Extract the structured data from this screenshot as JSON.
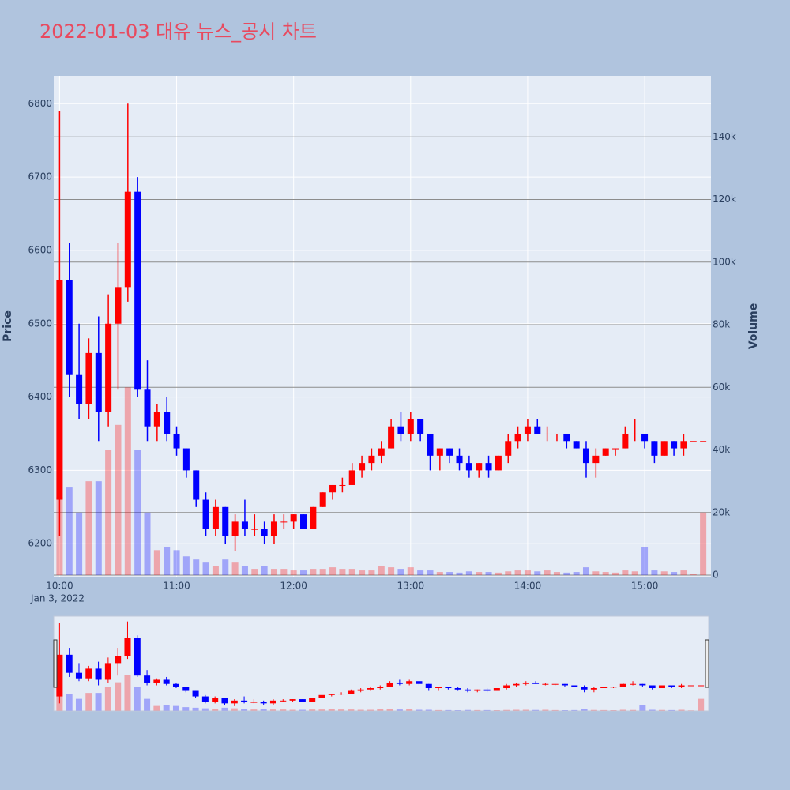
{
  "chart_data": {
    "type": "candlestick",
    "title": "2022-01-03 대유 뉴스_공시 차트",
    "y_label": "Price",
    "y2_label": "Volume",
    "x_date_label": "Jan 3, 2022",
    "x": [
      "2022-01-03 10:00",
      "2022-01-03 10:05",
      "2022-01-03 10:10",
      "2022-01-03 10:15",
      "2022-01-03 10:20",
      "2022-01-03 10:25",
      "2022-01-03 10:30",
      "2022-01-03 10:35",
      "2022-01-03 10:40",
      "2022-01-03 10:45",
      "2022-01-03 10:50",
      "2022-01-03 10:55",
      "2022-01-03 11:00",
      "2022-01-03 11:05",
      "2022-01-03 11:10",
      "2022-01-03 11:15",
      "2022-01-03 11:20",
      "2022-01-03 11:25",
      "2022-01-03 11:30",
      "2022-01-03 11:35",
      "2022-01-03 11:40",
      "2022-01-03 11:45",
      "2022-01-03 11:50",
      "2022-01-03 11:55",
      "2022-01-03 12:00",
      "2022-01-03 12:05",
      "2022-01-03 12:10",
      "2022-01-03 12:15",
      "2022-01-03 12:20",
      "2022-01-03 12:25",
      "2022-01-03 12:30",
      "2022-01-03 12:35",
      "2022-01-03 12:40",
      "2022-01-03 12:45",
      "2022-01-03 12:50",
      "2022-01-03 12:55",
      "2022-01-03 13:00",
      "2022-01-03 13:05",
      "2022-01-03 13:10",
      "2022-01-03 13:15",
      "2022-01-03 13:20",
      "2022-01-03 13:25",
      "2022-01-03 13:30",
      "2022-01-03 13:35",
      "2022-01-03 13:40",
      "2022-01-03 13:45",
      "2022-01-03 13:50",
      "2022-01-03 13:55",
      "2022-01-03 14:00",
      "2022-01-03 14:05",
      "2022-01-03 14:10",
      "2022-01-03 14:15",
      "2022-01-03 14:20",
      "2022-01-03 14:25",
      "2022-01-03 14:30",
      "2022-01-03 14:35",
      "2022-01-03 14:40",
      "2022-01-03 14:45",
      "2022-01-03 14:50",
      "2022-01-03 14:55",
      "2022-01-03 15:00",
      "2022-01-03 15:05",
      "2022-01-03 15:10",
      "2022-01-03 15:15",
      "2022-01-03 15:20",
      "2022-01-03 15:25",
      "2022-01-03 15:30"
    ],
    "open": [
      6260,
      6560,
      6430,
      6390,
      6460,
      6380,
      6500,
      6550,
      6680,
      6410,
      6360,
      6380,
      6350,
      6330,
      6300,
      6260,
      6220,
      6250,
      6210,
      6230,
      6220,
      6220,
      6210,
      6230,
      6230,
      6240,
      6220,
      6250,
      6270,
      6280,
      6280,
      6300,
      6310,
      6320,
      6330,
      6360,
      6350,
      6370,
      6350,
      6320,
      6330,
      6320,
      6310,
      6300,
      6310,
      6300,
      6320,
      6340,
      6350,
      6360,
      6350,
      6350,
      6350,
      6340,
      6330,
      6310,
      6320,
      6330,
      6330,
      6350,
      6350,
      6340,
      6320,
      6340,
      6330,
      6340,
      6340
    ],
    "high": [
      6790,
      6610,
      6500,
      6480,
      6510,
      6540,
      6610,
      6800,
      6700,
      6450,
      6390,
      6400,
      6360,
      6330,
      6300,
      6270,
      6260,
      6250,
      6240,
      6260,
      6240,
      6230,
      6240,
      6240,
      6240,
      6240,
      6250,
      6270,
      6280,
      6290,
      6310,
      6320,
      6330,
      6340,
      6370,
      6380,
      6380,
      6370,
      6350,
      6330,
      6330,
      6330,
      6320,
      6310,
      6320,
      6320,
      6350,
      6360,
      6370,
      6370,
      6360,
      6350,
      6350,
      6340,
      6340,
      6330,
      6330,
      6330,
      6360,
      6370,
      6350,
      6340,
      6340,
      6340,
      6350,
      6340,
      6340
    ],
    "low": [
      6210,
      6400,
      6370,
      6370,
      6340,
      6360,
      6410,
      6530,
      6400,
      6340,
      6340,
      6340,
      6320,
      6290,
      6250,
      6210,
      6210,
      6200,
      6190,
      6210,
      6210,
      6200,
      6200,
      6220,
      6220,
      6220,
      6220,
      6250,
      6260,
      6270,
      6280,
      6290,
      6300,
      6310,
      6330,
      6340,
      6340,
      6340,
      6300,
      6300,
      6310,
      6300,
      6290,
      6290,
      6290,
      6300,
      6310,
      6330,
      6340,
      6350,
      6340,
      6340,
      6330,
      6330,
      6290,
      6290,
      6320,
      6320,
      6330,
      6340,
      6330,
      6310,
      6320,
      6320,
      6320,
      6340,
      6340
    ],
    "close": [
      6560,
      6430,
      6390,
      6460,
      6380,
      6500,
      6550,
      6680,
      6410,
      6360,
      6380,
      6350,
      6330,
      6300,
      6260,
      6220,
      6250,
      6210,
      6230,
      6220,
      6220,
      6210,
      6230,
      6230,
      6240,
      6220,
      6250,
      6270,
      6280,
      6280,
      6300,
      6310,
      6320,
      6330,
      6360,
      6350,
      6370,
      6350,
      6320,
      6330,
      6320,
      6310,
      6300,
      6310,
      6300,
      6320,
      6340,
      6350,
      6360,
      6350,
      6350,
      6350,
      6340,
      6330,
      6310,
      6320,
      6330,
      6330,
      6350,
      6350,
      6340,
      6320,
      6340,
      6330,
      6340,
      6340,
      6340
    ],
    "volume": [
      25000,
      28000,
      20000,
      30000,
      30000,
      40000,
      48000,
      60000,
      40000,
      20000,
      8000,
      9000,
      8000,
      6000,
      5000,
      4000,
      3000,
      5000,
      4000,
      3000,
      2000,
      3000,
      2000,
      2000,
      1500,
      1500,
      2000,
      2000,
      2500,
      2000,
      2000,
      1500,
      1500,
      3000,
      2500,
      2000,
      2500,
      1500,
      1500,
      1000,
      1000,
      800,
      1200,
      1000,
      1000,
      800,
      1200,
      1500,
      1500,
      1200,
      1500,
      1000,
      800,
      1000,
      2500,
      1200,
      1000,
      800,
      1500,
      1200,
      9000,
      1500,
      1200,
      1000,
      1500,
      500,
      20000
    ],
    "increasing_color": "#ff0000",
    "decreasing_color": "#0000ff",
    "xlim": [
      "2022-01-03 09:57",
      "2022-01-03 15:34"
    ],
    "xticks": [
      {
        "value": "2022-01-03 10:00",
        "label": "10:00"
      },
      {
        "value": "2022-01-03 11:00",
        "label": "11:00"
      },
      {
        "value": "2022-01-03 12:00",
        "label": "12:00"
      },
      {
        "value": "2022-01-03 13:00",
        "label": "13:00"
      },
      {
        "value": "2022-01-03 14:00",
        "label": "14:00"
      },
      {
        "value": "2022-01-03 15:00",
        "label": "15:00"
      }
    ],
    "ylim": [
      6155,
      6838
    ],
    "yticks": [
      6200,
      6300,
      6400,
      6500,
      6600,
      6700,
      6800
    ],
    "y2lim": [
      -500,
      159500
    ],
    "y2ticks": [
      0,
      {
        "value": 20000,
        "label": "20k"
      },
      {
        "value": 40000,
        "label": "40k"
      },
      {
        "value": 60000,
        "label": "60k"
      },
      {
        "value": 80000,
        "label": "80k"
      },
      {
        "value": 100000,
        "label": "100k"
      },
      {
        "value": 120000,
        "label": "120k"
      },
      {
        "value": 140000,
        "label": "140k"
      }
    ],
    "rangeslider": true
  }
}
